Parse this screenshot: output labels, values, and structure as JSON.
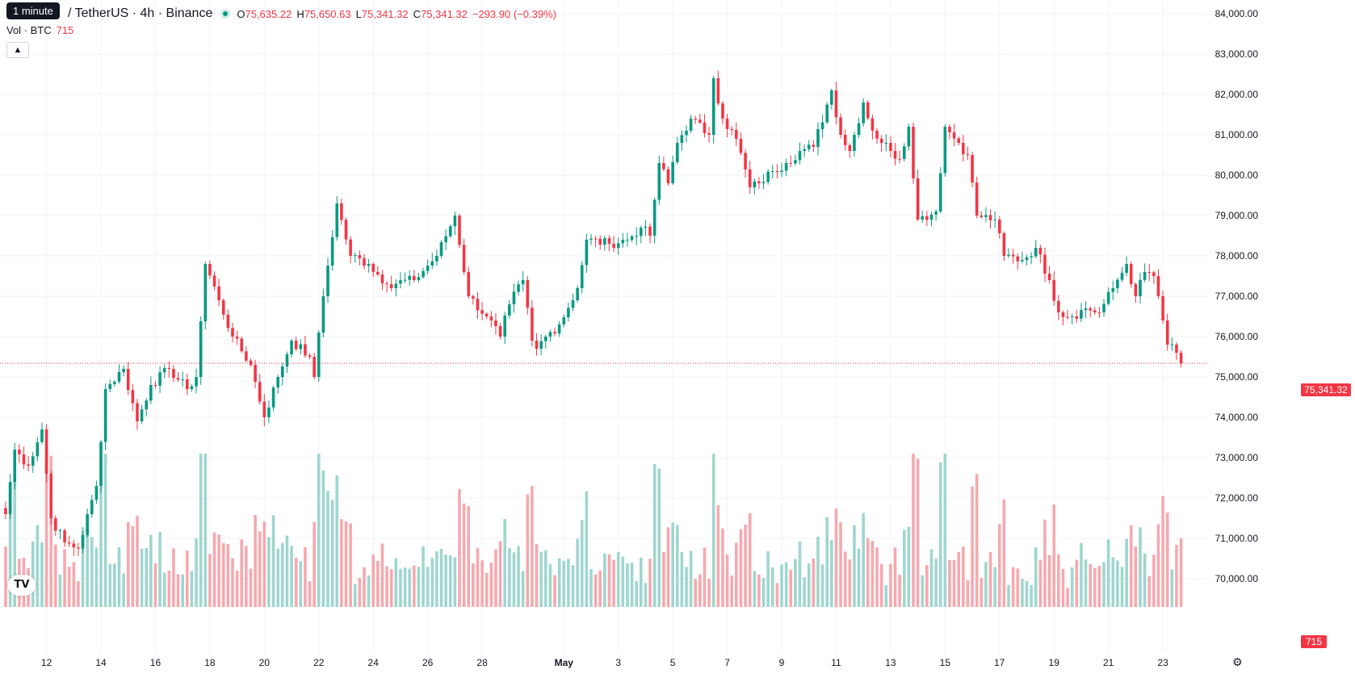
{
  "header": {
    "tooltip": "1 minute",
    "symbol": "/ TetherUS · 4h · Binance",
    "open_label": "O",
    "open": "75,635.22",
    "high_label": "H",
    "high": "75,650.63",
    "low_label": "L",
    "low": "75,341.32",
    "close_label": "C",
    "close": "75,341.32",
    "change": "−293.90 (−0.39%)"
  },
  "volume_row": {
    "label": "Vol · BTC",
    "value": "715"
  },
  "icons": {
    "collapse": "chevron-up-icon",
    "logo": "tradingview-logo-icon",
    "settings": "gear-icon"
  },
  "colors": {
    "up": "#089981",
    "down": "#f23645",
    "up_volume": "#9fd6cf",
    "down_volume": "#f6a9ae"
  },
  "chart_data": {
    "type": "candlestick",
    "price_axis": {
      "min": 69800,
      "max": 84300,
      "ticks": [
        "84,000.00",
        "83,000.00",
        "82,000.00",
        "81,000.00",
        "80,000.00",
        "79,000.00",
        "78,000.00",
        "77,000.00",
        "76,000.00",
        "75,000.00",
        "74,000.00",
        "73,000.00",
        "72,000.00",
        "71,000.00",
        "70,000.00"
      ],
      "tick_values": [
        84000,
        83000,
        82000,
        81000,
        80000,
        79000,
        78000,
        77000,
        76000,
        75000,
        74000,
        73000,
        72000,
        71000,
        70000
      ]
    },
    "time_axis": {
      "labels": [
        "12",
        "14",
        "16",
        "18",
        "20",
        "22",
        "24",
        "26",
        "28",
        "May",
        "3",
        "5",
        "7",
        "9",
        "11",
        "13",
        "15",
        "17",
        "19",
        "21",
        "23"
      ],
      "label_bar_index": [
        9,
        21,
        33,
        45,
        57,
        69,
        81,
        93,
        105,
        123,
        135,
        147,
        159,
        171,
        183,
        195,
        207,
        219,
        231,
        243,
        255
      ]
    },
    "last_price": "75,341.32",
    "last_volume": "715",
    "volume_max": 2100,
    "anchors": [
      {
        "i": 0,
        "c": 71600
      },
      {
        "i": 2,
        "c": 73200
      },
      {
        "i": 5,
        "c": 72800
      },
      {
        "i": 8,
        "c": 73700
      },
      {
        "i": 10,
        "c": 71500
      },
      {
        "i": 13,
        "c": 70900
      },
      {
        "i": 16,
        "c": 70750
      },
      {
        "i": 20,
        "c": 72300
      },
      {
        "i": 22,
        "c": 74700
      },
      {
        "i": 26,
        "c": 75200
      },
      {
        "i": 29,
        "c": 73900
      },
      {
        "i": 32,
        "c": 74800
      },
      {
        "i": 36,
        "c": 75200
      },
      {
        "i": 40,
        "c": 74700
      },
      {
        "i": 42,
        "c": 75000
      },
      {
        "i": 44,
        "c": 77800
      },
      {
        "i": 47,
        "c": 76900
      },
      {
        "i": 50,
        "c": 76000
      },
      {
        "i": 54,
        "c": 75300
      },
      {
        "i": 57,
        "c": 74000
      },
      {
        "i": 60,
        "c": 75000
      },
      {
        "i": 63,
        "c": 75900
      },
      {
        "i": 67,
        "c": 75500
      },
      {
        "i": 68,
        "c": 75000
      },
      {
        "i": 70,
        "c": 77000
      },
      {
        "i": 73,
        "c": 79300
      },
      {
        "i": 76,
        "c": 78000
      },
      {
        "i": 80,
        "c": 77800
      },
      {
        "i": 84,
        "c": 77300
      },
      {
        "i": 90,
        "c": 77400
      },
      {
        "i": 95,
        "c": 78000
      },
      {
        "i": 99,
        "c": 79000
      },
      {
        "i": 102,
        "c": 77000
      },
      {
        "i": 106,
        "c": 76500
      },
      {
        "i": 109,
        "c": 76000
      },
      {
        "i": 111,
        "c": 76800
      },
      {
        "i": 114,
        "c": 77400
      },
      {
        "i": 116,
        "c": 75900
      },
      {
        "i": 117,
        "c": 75700
      },
      {
        "i": 119,
        "c": 76000
      },
      {
        "i": 122,
        "c": 76300
      },
      {
        "i": 126,
        "c": 77200
      },
      {
        "i": 128,
        "c": 78400
      },
      {
        "i": 133,
        "c": 78300
      },
      {
        "i": 137,
        "c": 78400
      },
      {
        "i": 140,
        "c": 78700
      },
      {
        "i": 142,
        "c": 78500
      },
      {
        "i": 144,
        "c": 80300
      },
      {
        "i": 146,
        "c": 79800
      },
      {
        "i": 148,
        "c": 80800
      },
      {
        "i": 151,
        "c": 81400
      },
      {
        "i": 155,
        "c": 81000
      },
      {
        "i": 156,
        "c": 82400
      },
      {
        "i": 158,
        "c": 81400
      },
      {
        "i": 161,
        "c": 80900
      },
      {
        "i": 164,
        "c": 79700
      },
      {
        "i": 166,
        "c": 79800
      },
      {
        "i": 169,
        "c": 80100
      },
      {
        "i": 172,
        "c": 80300
      },
      {
        "i": 175,
        "c": 80600
      },
      {
        "i": 178,
        "c": 80700
      },
      {
        "i": 182,
        "c": 82100
      },
      {
        "i": 184,
        "c": 81000
      },
      {
        "i": 186,
        "c": 80600
      },
      {
        "i": 189,
        "c": 81800
      },
      {
        "i": 191,
        "c": 81100
      },
      {
        "i": 195,
        "c": 80600
      },
      {
        "i": 197,
        "c": 80400
      },
      {
        "i": 199,
        "c": 81200
      },
      {
        "i": 201,
        "c": 78900
      },
      {
        "i": 205,
        "c": 79100
      },
      {
        "i": 207,
        "c": 81200
      },
      {
        "i": 210,
        "c": 80800
      },
      {
        "i": 212,
        "c": 80500
      },
      {
        "i": 214,
        "c": 79000
      },
      {
        "i": 218,
        "c": 78900
      },
      {
        "i": 220,
        "c": 78000
      },
      {
        "i": 224,
        "c": 77900
      },
      {
        "i": 227,
        "c": 78200
      },
      {
        "i": 230,
        "c": 77400
      },
      {
        "i": 232,
        "c": 76600
      },
      {
        "i": 235,
        "c": 76500
      },
      {
        "i": 238,
        "c": 76700
      },
      {
        "i": 241,
        "c": 76600
      },
      {
        "i": 244,
        "c": 77200
      },
      {
        "i": 247,
        "c": 77800
      },
      {
        "i": 249,
        "c": 77000
      },
      {
        "i": 251,
        "c": 77600
      },
      {
        "i": 253,
        "c": 77500
      },
      {
        "i": 254,
        "c": 77000
      },
      {
        "i": 256,
        "c": 75800
      },
      {
        "i": 258,
        "c": 75600
      },
      {
        "i": 259,
        "c": 75341
      }
    ]
  }
}
